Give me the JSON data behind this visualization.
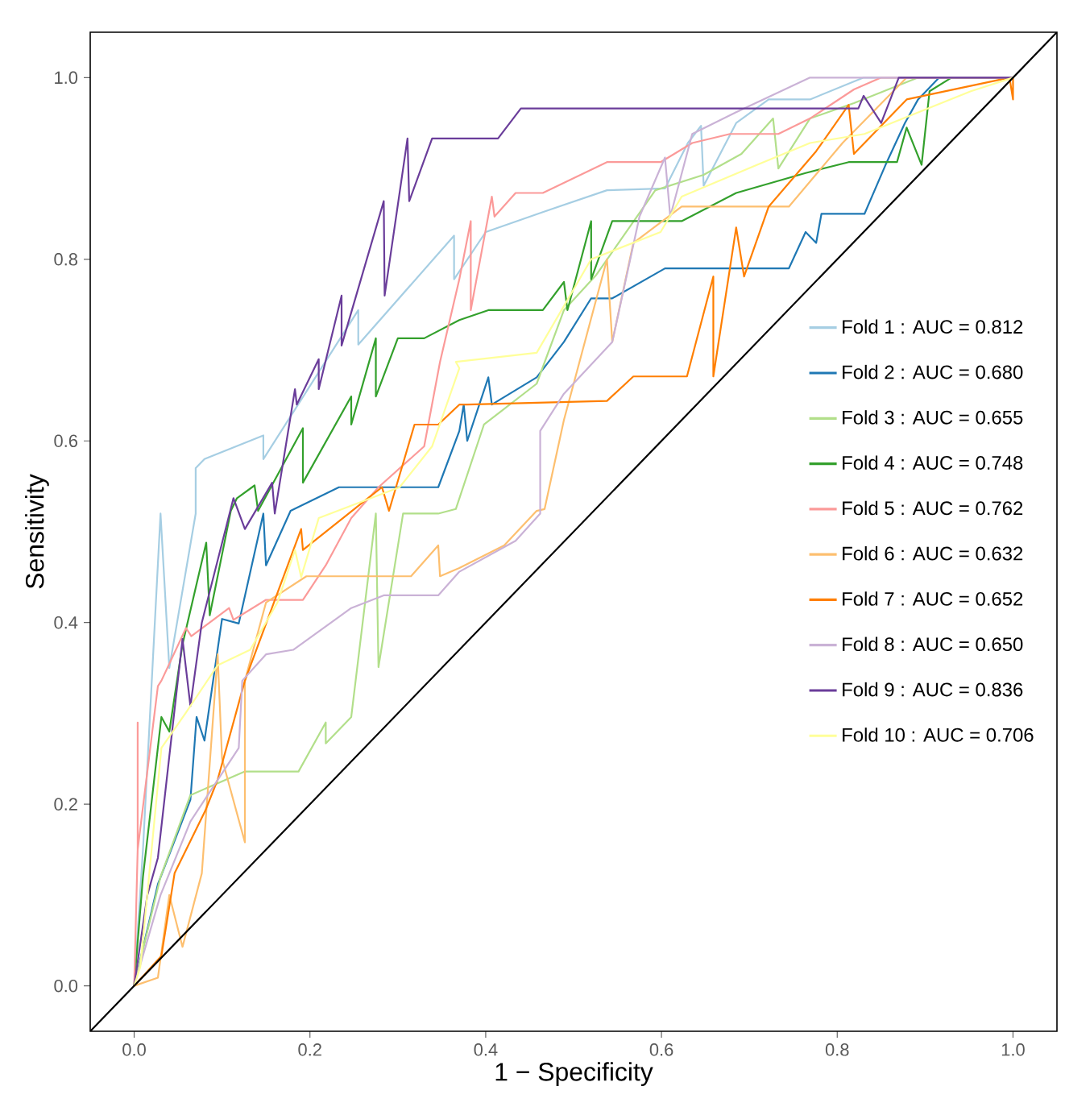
{
  "chart_data": {
    "type": "line",
    "xlabel": "1 − Specificity",
    "ylabel": "Sensitivity",
    "xlim": [
      -0.05,
      1.05
    ],
    "ylim": [
      -0.05,
      1.05
    ],
    "xticks": [
      {
        "value": 0,
        "label": "0.0"
      },
      {
        "value": 0.2,
        "label": "0.2"
      },
      {
        "value": 0.4,
        "label": "0.4"
      },
      {
        "value": 0.6,
        "label": "0.6"
      },
      {
        "value": 0.8,
        "label": "0.8"
      },
      {
        "value": 1,
        "label": "1.0"
      }
    ],
    "yticks": [
      {
        "value": 0,
        "label": "0.0"
      },
      {
        "value": 0.2,
        "label": "0.2"
      },
      {
        "value": 0.4,
        "label": "0.4"
      },
      {
        "value": 0.6,
        "label": "0.6"
      },
      {
        "value": 0.8,
        "label": "0.8"
      },
      {
        "value": 1,
        "label": "1.0"
      }
    ],
    "grid": false,
    "legend": "right",
    "series": [
      {
        "name": "Fold 1 : AUC = 0.812",
        "color": "#a6cee3",
        "x": [
          0,
          0.01,
          0.03,
          0.04,
          0.07,
          0.07,
          0.08,
          0.147,
          0.147,
          0.255,
          0.255,
          0.364,
          0.364,
          0.4,
          0.465,
          0.538,
          0.604,
          0.63,
          0.645,
          0.648,
          0.685,
          0.722,
          0.769,
          0.83,
          1
        ],
        "values": [
          0,
          0.15,
          0.52,
          0.35,
          0.52,
          0.57,
          0.58,
          0.606,
          0.58,
          0.744,
          0.706,
          0.826,
          0.778,
          0.83,
          0.852,
          0.876,
          0.878,
          0.928,
          0.947,
          0.881,
          0.95,
          0.976,
          0.976,
          1,
          1
        ]
      },
      {
        "name": "Fold 2 : AUC = 0.680",
        "color": "#1f78b4",
        "x": [
          0,
          0.027,
          0.064,
          0.071,
          0.08,
          0.1,
          0.119,
          0.147,
          0.15,
          0.178,
          0.233,
          0.346,
          0.37,
          0.375,
          0.379,
          0.403,
          0.407,
          0.458,
          0.489,
          0.52,
          0.544,
          0.604,
          0.745,
          0.764,
          0.776,
          0.782,
          0.831,
          0.855,
          0.877,
          0.892,
          0.916,
          1
        ],
        "values": [
          0,
          0.112,
          0.205,
          0.296,
          0.27,
          0.404,
          0.399,
          0.52,
          0.463,
          0.523,
          0.549,
          0.549,
          0.611,
          0.64,
          0.6,
          0.67,
          0.64,
          0.67,
          0.709,
          0.757,
          0.757,
          0.79,
          0.79,
          0.83,
          0.818,
          0.85,
          0.85,
          0.904,
          0.95,
          0.976,
          1,
          1
        ]
      },
      {
        "name": "Fold 3 : AUC = 0.655",
        "color": "#b2df8a",
        "x": [
          0,
          0.03,
          0.064,
          0.126,
          0.187,
          0.218,
          0.218,
          0.247,
          0.275,
          0.278,
          0.306,
          0.346,
          0.366,
          0.398,
          0.458,
          0.489,
          0.526,
          0.593,
          0.648,
          0.691,
          0.727,
          0.733,
          0.769,
          0.819,
          0.892,
          1
        ],
        "values": [
          0,
          0.12,
          0.21,
          0.236,
          0.236,
          0.29,
          0.267,
          0.296,
          0.52,
          0.351,
          0.52,
          0.52,
          0.525,
          0.618,
          0.663,
          0.744,
          0.783,
          0.876,
          0.893,
          0.916,
          0.955,
          0.9,
          0.955,
          0.972,
          1,
          1
        ]
      },
      {
        "name": "Fold 4 : AUC = 0.748",
        "color": "#33a02c",
        "x": [
          0,
          0.01,
          0.031,
          0.04,
          0.055,
          0.082,
          0.086,
          0.11,
          0.117,
          0.137,
          0.141,
          0.192,
          0.192,
          0.247,
          0.247,
          0.275,
          0.275,
          0.3,
          0.33,
          0.37,
          0.403,
          0.465,
          0.489,
          0.493,
          0.52,
          0.52,
          0.544,
          0.623,
          0.685,
          0.764,
          0.813,
          0.868,
          0.879,
          0.896,
          0.905,
          0.93,
          1
        ],
        "values": [
          0,
          0.12,
          0.296,
          0.28,
          0.376,
          0.488,
          0.408,
          0.523,
          0.537,
          0.551,
          0.523,
          0.614,
          0.554,
          0.649,
          0.618,
          0.713,
          0.649,
          0.713,
          0.713,
          0.733,
          0.744,
          0.744,
          0.775,
          0.744,
          0.842,
          0.778,
          0.842,
          0.842,
          0.873,
          0.895,
          0.907,
          0.907,
          0.945,
          0.904,
          0.985,
          1,
          1
        ]
      },
      {
        "name": "Fold 5 : AUC = 0.762",
        "color": "#fb9a99",
        "x": [
          0,
          0.004,
          0.004,
          0.004,
          0.027,
          0.031,
          0.059,
          0.065,
          0.108,
          0.113,
          0.15,
          0.192,
          0.218,
          0.247,
          0.278,
          0.33,
          0.348,
          0.37,
          0.383,
          0.383,
          0.407,
          0.41,
          0.434,
          0.465,
          0.538,
          0.599,
          0.635,
          0.678,
          0.733,
          0.769,
          0.819,
          0.85,
          1
        ],
        "values": [
          0,
          0.15,
          0.29,
          0.15,
          0.33,
          0.336,
          0.394,
          0.385,
          0.416,
          0.403,
          0.425,
          0.425,
          0.463,
          0.515,
          0.549,
          0.594,
          0.687,
          0.778,
          0.842,
          0.744,
          0.869,
          0.847,
          0.873,
          0.873,
          0.907,
          0.907,
          0.928,
          0.938,
          0.938,
          0.955,
          0.987,
          1,
          1
        ]
      },
      {
        "name": "Fold 6 : AUC = 0.632",
        "color": "#fdbf6f",
        "x": [
          0,
          0.027,
          0.04,
          0.055,
          0.077,
          0.095,
          0.1,
          0.126,
          0.126,
          0.15,
          0.196,
          0.315,
          0.346,
          0.348,
          0.37,
          0.421,
          0.458,
          0.467,
          0.489,
          0.538,
          0.544,
          0.568,
          0.623,
          0.745,
          0.806,
          0.879,
          1
        ],
        "values": [
          0,
          0.009,
          0.1,
          0.043,
          0.124,
          0.365,
          0.25,
          0.158,
          0.336,
          0.422,
          0.451,
          0.451,
          0.485,
          0.451,
          0.46,
          0.485,
          0.523,
          0.525,
          0.623,
          0.8,
          0.709,
          0.818,
          0.858,
          0.858,
          0.928,
          1,
          1
        ]
      },
      {
        "name": "Fold 7 : AUC = 0.652",
        "color": "#ff7f00",
        "x": [
          0,
          0.031,
          0.046,
          0.081,
          0.095,
          0.126,
          0.159,
          0.19,
          0.192,
          0.266,
          0.282,
          0.29,
          0.319,
          0.346,
          0.37,
          0.379,
          0.538,
          0.568,
          0.629,
          0.659,
          0.659,
          0.685,
          0.694,
          0.722,
          0.776,
          0.813,
          0.819,
          0.879,
          0.996,
          1,
          1
        ],
        "values": [
          0,
          0.033,
          0.124,
          0.193,
          0.227,
          0.336,
          0.422,
          0.503,
          0.48,
          0.537,
          0.549,
          0.523,
          0.618,
          0.618,
          0.64,
          0.64,
          0.644,
          0.671,
          0.671,
          0.781,
          0.671,
          0.835,
          0.781,
          0.858,
          0.919,
          0.97,
          0.916,
          0.976,
          1,
          0.976,
          1
        ]
      },
      {
        "name": "Fold 8 : AUC = 0.650",
        "color": "#cab2d6",
        "x": [
          0,
          0.03,
          0.064,
          0.119,
          0.123,
          0.15,
          0.181,
          0.247,
          0.284,
          0.346,
          0.37,
          0.434,
          0.462,
          0.462,
          0.489,
          0.544,
          0.575,
          0.604,
          0.61,
          0.635,
          0.685,
          0.769,
          1
        ],
        "values": [
          0,
          0.1,
          0.181,
          0.262,
          0.336,
          0.365,
          0.37,
          0.416,
          0.43,
          0.43,
          0.456,
          0.49,
          0.52,
          0.611,
          0.652,
          0.709,
          0.847,
          0.912,
          0.847,
          0.938,
          0.962,
          1,
          1
        ]
      },
      {
        "name": "Fold 9 : AUC = 0.836",
        "color": "#6a3d9a",
        "x": [
          0,
          0.015,
          0.027,
          0.055,
          0.064,
          0.077,
          0.113,
          0.126,
          0.157,
          0.16,
          0.183,
          0.185,
          0.21,
          0.21,
          0.236,
          0.236,
          0.284,
          0.285,
          0.311,
          0.313,
          0.339,
          0.414,
          0.44,
          0.824,
          0.83,
          0.85,
          0.87,
          1
        ],
        "values": [
          0,
          0.1,
          0.141,
          0.382,
          0.308,
          0.4,
          0.537,
          0.503,
          0.554,
          0.52,
          0.657,
          0.64,
          0.69,
          0.657,
          0.76,
          0.705,
          0.864,
          0.76,
          0.933,
          0.864,
          0.933,
          0.933,
          0.966,
          0.966,
          0.98,
          0.95,
          1,
          1
        ]
      },
      {
        "name": "Fold 10 : AUC = 0.706",
        "color": "#ffff99",
        "x": [
          0,
          0.007,
          0.031,
          0.059,
          0.095,
          0.132,
          0.163,
          0.183,
          0.19,
          0.21,
          0.302,
          0.339,
          0.37,
          0.366,
          0.458,
          0.52,
          0.599,
          0.623,
          0.709,
          0.769,
          0.831,
          0.952,
          1
        ],
        "values": [
          0,
          0.021,
          0.262,
          0.301,
          0.353,
          0.37,
          0.422,
          0.48,
          0.45,
          0.515,
          0.549,
          0.594,
          0.68,
          0.687,
          0.697,
          0.8,
          0.83,
          0.869,
          0.904,
          0.928,
          0.938,
          0.985,
          1
        ]
      },
      {
        "color": "#000000",
        "x": [
          -0.05,
          1.05
        ],
        "values": [
          -0.05,
          1.05
        ]
      }
    ]
  }
}
